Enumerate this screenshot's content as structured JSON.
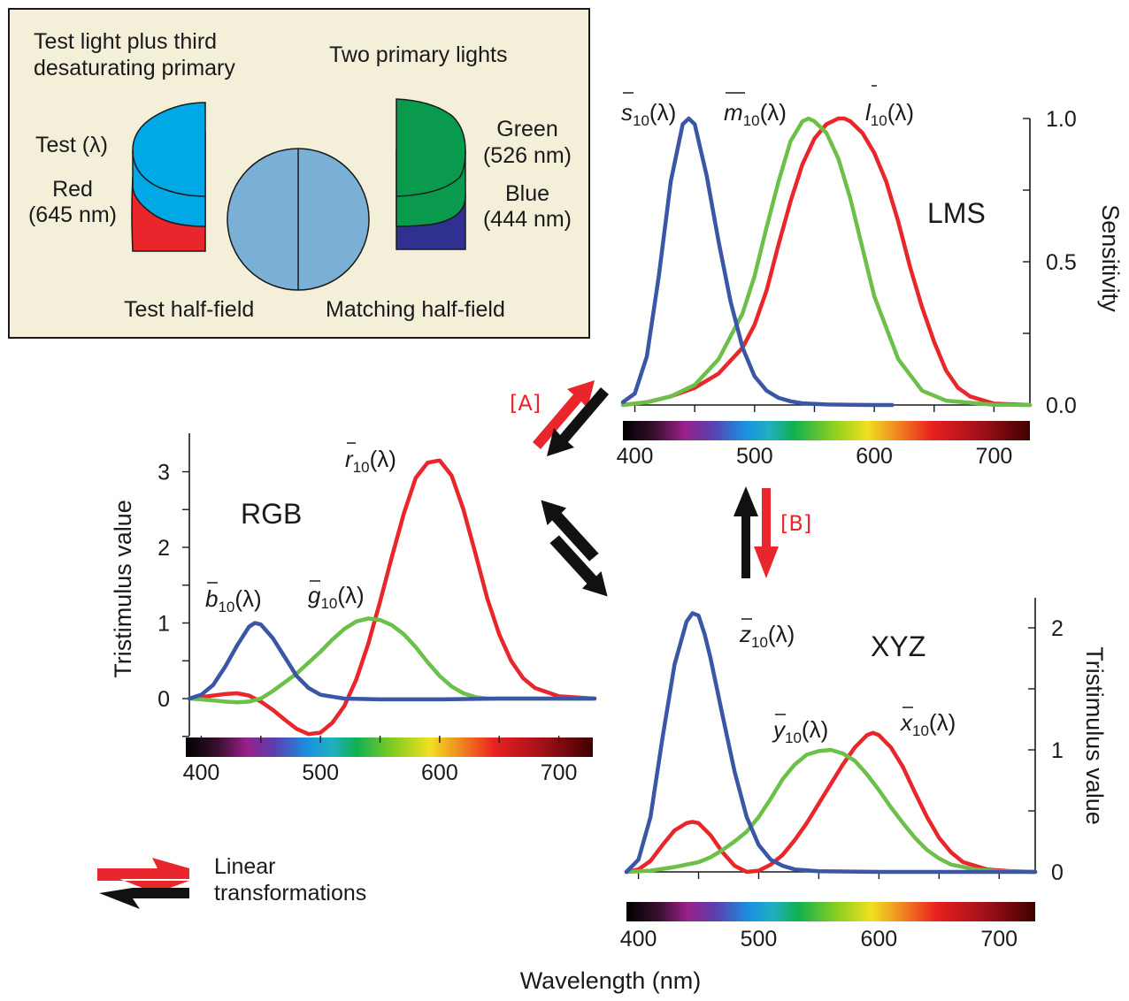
{
  "colors": {
    "red": "#e8262b",
    "green": "#6cc04a",
    "blue": "#3a56a5",
    "panel": "#f3efd8",
    "test_blue": "#00a9e6",
    "field": "#7ab0d6",
    "matching_green": "#0a9a4e",
    "matching_blue": "#303090"
  },
  "inset": {
    "test_desat_line1": "Test light plus third",
    "test_desat_line2": "desaturating primary",
    "two_primary": "Two primary lights",
    "test": "Test (λ)",
    "red_line1": "Red",
    "red_line2": "(645 nm)",
    "green_line1": "Green",
    "green_line2": "(526 nm)",
    "blue_line1": "Blue",
    "blue_line2": "(444 nm)",
    "test_half": "Test half-field",
    "matching_half": "Matching half-field"
  },
  "arrows": {
    "A": "[A]",
    "B": "[B]",
    "legend_line1": "Linear",
    "legend_line2": "transformations"
  },
  "shared": {
    "x_label": "Wavelength (nm)"
  },
  "chart_data": [
    {
      "type": "line",
      "title": "LMS",
      "ylabel": "Sensitivity",
      "xlim": [
        390,
        730
      ],
      "ylim": [
        0,
        1.0
      ],
      "x_ticks": [
        "400",
        "500",
        "600",
        "700"
      ],
      "y_ticks": [
        "0.0",
        "0.5",
        "1.0"
      ],
      "series": [
        {
          "label": "s",
          "sub": "10",
          "color": "#3a56a5",
          "x": [
            390,
            400,
            410,
            420,
            430,
            440,
            445,
            450,
            460,
            470,
            480,
            490,
            500,
            510,
            520,
            530,
            540,
            560,
            580,
            600,
            615
          ],
          "y": [
            0.01,
            0.04,
            0.17,
            0.45,
            0.78,
            0.98,
            1.0,
            0.98,
            0.8,
            0.57,
            0.36,
            0.2,
            0.1,
            0.05,
            0.025,
            0.013,
            0.006,
            0.002,
            0.001,
            0.0,
            0.0
          ]
        },
        {
          "label": "m",
          "sub": "10",
          "color": "#6cc04a",
          "x": [
            390,
            410,
            430,
            450,
            470,
            490,
            500,
            510,
            520,
            530,
            540,
            545,
            550,
            560,
            570,
            580,
            590,
            600,
            620,
            640,
            660,
            700,
            730
          ],
          "y": [
            0.0,
            0.01,
            0.03,
            0.07,
            0.16,
            0.32,
            0.45,
            0.62,
            0.78,
            0.92,
            0.99,
            1.0,
            0.99,
            0.95,
            0.86,
            0.72,
            0.55,
            0.38,
            0.16,
            0.05,
            0.015,
            0.001,
            0.0
          ]
        },
        {
          "label": "l",
          "sub": "10",
          "color": "#e8262b",
          "x": [
            390,
            410,
            430,
            450,
            470,
            490,
            500,
            510,
            520,
            530,
            540,
            550,
            560,
            570,
            575,
            580,
            590,
            600,
            610,
            620,
            630,
            640,
            650,
            660,
            670,
            680,
            700,
            730
          ],
          "y": [
            0.0,
            0.01,
            0.03,
            0.06,
            0.11,
            0.2,
            0.28,
            0.4,
            0.56,
            0.71,
            0.84,
            0.93,
            0.98,
            1.0,
            1.0,
            0.99,
            0.95,
            0.88,
            0.78,
            0.64,
            0.48,
            0.34,
            0.22,
            0.12,
            0.06,
            0.03,
            0.005,
            0.0
          ]
        }
      ]
    },
    {
      "type": "line",
      "title": "RGB",
      "ylabel": "Tristimulus value",
      "xlim": [
        390,
        730
      ],
      "ylim": [
        -0.5,
        3.3
      ],
      "x_ticks": [
        "400",
        "500",
        "600",
        "700"
      ],
      "y_ticks": [
        "0",
        "1",
        "2",
        "3"
      ],
      "series": [
        {
          "label": "b",
          "sub": "10",
          "color": "#3a56a5",
          "x": [
            390,
            400,
            410,
            420,
            430,
            440,
            445,
            450,
            460,
            470,
            480,
            490,
            500,
            520,
            550,
            600,
            650,
            700,
            730
          ],
          "y": [
            0.0,
            0.05,
            0.18,
            0.42,
            0.7,
            0.95,
            1.0,
            0.98,
            0.8,
            0.55,
            0.3,
            0.14,
            0.05,
            0.0,
            -0.01,
            -0.01,
            0.0,
            0.0,
            0.0
          ]
        },
        {
          "label": "g",
          "sub": "10",
          "color": "#6cc04a",
          "x": [
            390,
            400,
            420,
            430,
            440,
            450,
            460,
            480,
            500,
            510,
            520,
            530,
            540,
            550,
            560,
            570,
            580,
            590,
            600,
            610,
            620,
            630,
            640,
            660,
            700,
            730
          ],
          "y": [
            0.0,
            -0.01,
            -0.04,
            -0.05,
            -0.04,
            0.0,
            0.1,
            0.33,
            0.62,
            0.78,
            0.92,
            1.02,
            1.06,
            1.04,
            0.97,
            0.85,
            0.68,
            0.48,
            0.3,
            0.16,
            0.07,
            0.02,
            0.0,
            0.0,
            0.0,
            0.0
          ]
        },
        {
          "label": "r",
          "sub": "10",
          "color": "#e8262b",
          "x": [
            390,
            400,
            420,
            430,
            440,
            450,
            460,
            470,
            480,
            490,
            500,
            510,
            520,
            530,
            540,
            550,
            560,
            570,
            580,
            590,
            600,
            610,
            620,
            630,
            640,
            650,
            660,
            670,
            680,
            700,
            730
          ],
          "y": [
            0.0,
            0.02,
            0.06,
            0.07,
            0.04,
            -0.04,
            -0.15,
            -0.28,
            -0.4,
            -0.47,
            -0.45,
            -0.32,
            -0.1,
            0.25,
            0.72,
            1.28,
            1.88,
            2.45,
            2.92,
            3.12,
            3.15,
            2.95,
            2.5,
            1.92,
            1.32,
            0.85,
            0.5,
            0.27,
            0.14,
            0.03,
            0.0
          ]
        }
      ]
    },
    {
      "type": "line",
      "title": "XYZ",
      "ylabel": "Tristimulus value",
      "xlim": [
        390,
        730
      ],
      "ylim": [
        0,
        2.2
      ],
      "x_ticks": [
        "400",
        "500",
        "600",
        "700"
      ],
      "y_ticks": [
        "0",
        "1",
        "2"
      ],
      "series": [
        {
          "label": "z",
          "sub": "10",
          "color": "#3a56a5",
          "x": [
            390,
            400,
            410,
            420,
            430,
            440,
            445,
            450,
            455,
            460,
            470,
            480,
            490,
            500,
            510,
            520,
            530,
            550,
            600,
            650,
            700,
            730
          ],
          "y": [
            0.0,
            0.1,
            0.45,
            1.1,
            1.7,
            2.05,
            2.12,
            2.1,
            1.95,
            1.75,
            1.28,
            0.82,
            0.45,
            0.22,
            0.1,
            0.05,
            0.02,
            0.005,
            0.0,
            0.0,
            0.0,
            0.0
          ]
        },
        {
          "label": "y",
          "sub": "10",
          "color": "#6cc04a",
          "x": [
            390,
            410,
            430,
            450,
            460,
            470,
            480,
            490,
            500,
            510,
            520,
            530,
            540,
            550,
            560,
            570,
            580,
            590,
            600,
            610,
            620,
            630,
            640,
            650,
            660,
            680,
            700,
            730
          ],
          "y": [
            0.0,
            0.01,
            0.04,
            0.08,
            0.12,
            0.18,
            0.25,
            0.33,
            0.45,
            0.6,
            0.76,
            0.88,
            0.96,
            0.99,
            1.0,
            0.97,
            0.91,
            0.8,
            0.67,
            0.53,
            0.4,
            0.28,
            0.18,
            0.11,
            0.06,
            0.02,
            0.005,
            0.0
          ]
        },
        {
          "label": "x",
          "sub": "10",
          "color": "#e8262b",
          "x": [
            390,
            400,
            410,
            420,
            430,
            440,
            445,
            450,
            460,
            470,
            480,
            490,
            500,
            510,
            520,
            530,
            540,
            550,
            560,
            570,
            580,
            590,
            595,
            600,
            610,
            620,
            630,
            640,
            650,
            660,
            670,
            690,
            710,
            730
          ],
          "y": [
            0.0,
            0.02,
            0.09,
            0.22,
            0.34,
            0.4,
            0.41,
            0.4,
            0.3,
            0.16,
            0.05,
            0.0,
            0.01,
            0.06,
            0.14,
            0.26,
            0.4,
            0.56,
            0.72,
            0.88,
            1.02,
            1.12,
            1.14,
            1.12,
            1.02,
            0.86,
            0.65,
            0.45,
            0.28,
            0.16,
            0.08,
            0.02,
            0.005,
            0.0
          ]
        }
      ]
    }
  ]
}
